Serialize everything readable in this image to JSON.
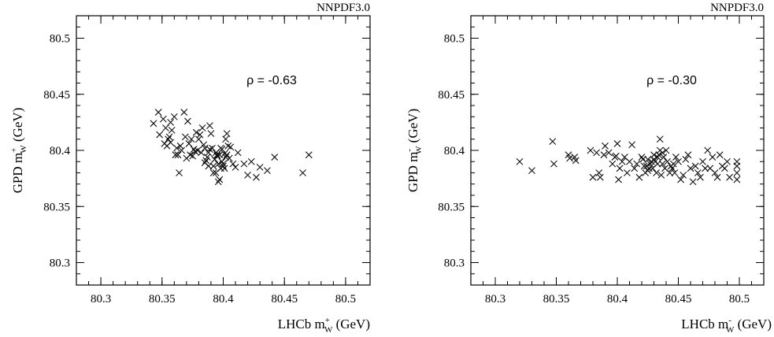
{
  "chart_data": [
    {
      "type": "scatter",
      "label": "NNPDF3.0",
      "annotation": "ρ = -0.63",
      "xlabel": {
        "main": "LHCb m",
        "sub": "W",
        "sup": "+",
        "unit": " (GeV)"
      },
      "ylabel": {
        "main": "GPD m",
        "sub": "W",
        "sup": "+",
        "unit": " (GeV)"
      },
      "xlim": [
        80.28,
        80.52
      ],
      "ylim": [
        80.28,
        80.52
      ],
      "xticks": [
        80.3,
        80.35,
        80.4,
        80.45,
        80.5
      ],
      "yticks": [
        80.3,
        80.35,
        80.4,
        80.45,
        80.5
      ],
      "xtick_labels": [
        "80.3",
        "80.35",
        "80.4",
        "80.45",
        "80.5"
      ],
      "ytick_labels": [
        "80.3",
        "80.35",
        "80.4",
        "80.45",
        "80.5"
      ],
      "marker": "x",
      "grid": false,
      "x": [
        80.343,
        80.347,
        80.351,
        80.353,
        80.355,
        80.357,
        80.348,
        80.352,
        80.354,
        80.356,
        80.358,
        80.36,
        80.362,
        80.363,
        80.365,
        80.366,
        80.368,
        80.369,
        80.371,
        80.372,
        80.374,
        80.375,
        80.376,
        80.378,
        80.379,
        80.38,
        80.381,
        80.382,
        80.383,
        80.384,
        80.385,
        80.386,
        80.387,
        80.388,
        80.389,
        80.39,
        80.391,
        80.392,
        80.393,
        80.394,
        80.395,
        80.396,
        80.397,
        80.398,
        80.399,
        80.4,
        80.401,
        80.402,
        80.403,
        80.404,
        80.405,
        80.394,
        80.396,
        80.398,
        80.4,
        80.402,
        80.385,
        80.388,
        80.392,
        80.395,
        80.399,
        80.401,
        80.403,
        80.406,
        80.408,
        80.41,
        80.412,
        80.417,
        80.42,
        80.423,
        80.427,
        80.43,
        80.436,
        80.442,
        80.465,
        80.47,
        80.361,
        80.364,
        80.37,
        80.373,
        80.377,
        80.389,
        80.393,
        80.397,
        80.357
      ],
      "y": [
        80.424,
        80.434,
        80.428,
        80.42,
        80.41,
        80.425,
        80.414,
        80.406,
        80.404,
        80.412,
        80.418,
        80.43,
        80.402,
        80.396,
        80.404,
        80.4,
        80.434,
        80.412,
        80.426,
        80.406,
        80.41,
        80.395,
        80.401,
        80.416,
        80.4,
        80.41,
        80.414,
        80.398,
        80.42,
        80.405,
        80.402,
        80.391,
        80.394,
        80.398,
        80.422,
        80.415,
        80.402,
        80.386,
        80.392,
        80.398,
        80.395,
        80.388,
        80.374,
        80.402,
        80.39,
        80.386,
        80.397,
        80.41,
        80.415,
        80.404,
        80.393,
        80.38,
        80.372,
        80.384,
        80.388,
        80.394,
        80.389,
        80.386,
        80.38,
        80.396,
        80.401,
        80.384,
        80.396,
        80.403,
        80.388,
        80.385,
        80.398,
        80.388,
        80.378,
        80.39,
        80.376,
        80.385,
        80.382,
        80.394,
        80.38,
        80.396,
        80.396,
        80.38,
        80.393,
        80.396,
        80.399,
        80.401,
        80.392,
        80.396,
        80.407
      ]
    },
    {
      "type": "scatter",
      "label": "NNPDF3.0",
      "annotation": "ρ = -0.30",
      "xlabel": {
        "main": "LHCb m",
        "sub": "W",
        "sup": "-",
        "unit": " (GeV)"
      },
      "ylabel": {
        "main": "GPD m",
        "sub": "W",
        "sup": "-",
        "unit": " (GeV)"
      },
      "xlim": [
        80.28,
        80.52
      ],
      "ylim": [
        80.28,
        80.52
      ],
      "xticks": [
        80.3,
        80.35,
        80.4,
        80.45,
        80.5
      ],
      "yticks": [
        80.3,
        80.35,
        80.4,
        80.45,
        80.5
      ],
      "xtick_labels": [
        "80.3",
        "80.35",
        "80.4",
        "80.45",
        "80.5"
      ],
      "ytick_labels": [
        "80.3",
        "80.35",
        "80.4",
        "80.45",
        "80.5"
      ],
      "marker": "x",
      "grid": false,
      "x": [
        80.32,
        80.33,
        80.347,
        80.348,
        80.36,
        80.361,
        80.365,
        80.366,
        80.378,
        80.38,
        80.383,
        80.385,
        80.386,
        80.389,
        80.39,
        80.393,
        80.396,
        80.398,
        80.399,
        80.4,
        80.401,
        80.402,
        80.404,
        80.406,
        80.408,
        80.41,
        80.412,
        80.414,
        80.416,
        80.418,
        80.42,
        80.421,
        80.422,
        80.423,
        80.424,
        80.425,
        80.426,
        80.427,
        80.428,
        80.429,
        80.43,
        80.431,
        80.432,
        80.433,
        80.434,
        80.435,
        80.436,
        80.437,
        80.438,
        80.439,
        80.44,
        80.441,
        80.443,
        80.444,
        80.445,
        80.446,
        80.447,
        80.448,
        80.45,
        80.452,
        80.454,
        80.456,
        80.458,
        80.46,
        80.462,
        80.464,
        80.466,
        80.468,
        80.47,
        80.472,
        80.474,
        80.476,
        80.478,
        80.48,
        80.482,
        80.484,
        80.486,
        80.488,
        80.49,
        80.492,
        80.498,
        80.498,
        80.498,
        80.498,
        80.435,
        80.437,
        80.433,
        80.43,
        80.425
      ],
      "y": [
        80.39,
        80.382,
        80.408,
        80.388,
        80.396,
        80.393,
        80.394,
        80.391,
        80.4,
        80.376,
        80.398,
        80.38,
        80.376,
        80.396,
        80.404,
        80.398,
        80.388,
        80.394,
        80.395,
        80.406,
        80.374,
        80.384,
        80.39,
        80.394,
        80.38,
        80.39,
        80.405,
        80.384,
        80.388,
        80.376,
        80.394,
        80.392,
        80.386,
        80.38,
        80.386,
        80.392,
        80.384,
        80.388,
        80.39,
        80.384,
        80.396,
        80.39,
        80.38,
        80.388,
        80.396,
        80.41,
        80.378,
        80.388,
        80.394,
        80.384,
        80.4,
        80.39,
        80.38,
        80.386,
        80.384,
        80.388,
        80.38,
        80.394,
        80.39,
        80.374,
        80.378,
        80.392,
        80.396,
        80.384,
        80.372,
        80.386,
        80.38,
        80.376,
        80.39,
        80.384,
        80.4,
        80.384,
        80.394,
        80.38,
        80.376,
        80.396,
        80.386,
        80.384,
        80.39,
        80.376,
        80.374,
        80.38,
        80.386,
        80.39,
        80.4,
        80.398,
        80.394,
        80.392,
        80.382
      ]
    }
  ]
}
